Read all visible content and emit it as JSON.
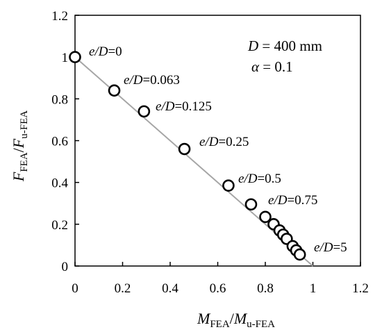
{
  "chart_data": {
    "type": "scatter",
    "xlabel": {
      "main": "M",
      "sub1": "FEA",
      "sep": "/",
      "main2": "M",
      "sub2": "u-FEA"
    },
    "ylabel": {
      "main": "F",
      "sub1": "FEA",
      "sep": "/",
      "main2": "F",
      "sub2": "u-FEA"
    },
    "xlim": [
      0,
      1.2
    ],
    "ylim": [
      0,
      1.2
    ],
    "xticks": [
      "0",
      "0.2",
      "0.4",
      "0.6",
      "0.8",
      "1",
      "1.2"
    ],
    "yticks": [
      "0",
      "0.2",
      "0.4",
      "0.6",
      "0.8",
      "1",
      "1.2"
    ],
    "grid": false,
    "reference_line": {
      "from": [
        0,
        1
      ],
      "to": [
        1,
        0
      ],
      "color": "#a6a6a6"
    },
    "points": [
      {
        "x": 0.0,
        "y": 1.0
      },
      {
        "x": 0.165,
        "y": 0.84
      },
      {
        "x": 0.29,
        "y": 0.74
      },
      {
        "x": 0.46,
        "y": 0.56
      },
      {
        "x": 0.645,
        "y": 0.385
      },
      {
        "x": 0.74,
        "y": 0.295
      },
      {
        "x": 0.8,
        "y": 0.235
      },
      {
        "x": 0.835,
        "y": 0.2
      },
      {
        "x": 0.86,
        "y": 0.17
      },
      {
        "x": 0.875,
        "y": 0.15
      },
      {
        "x": 0.89,
        "y": 0.13
      },
      {
        "x": 0.915,
        "y": 0.095
      },
      {
        "x": 0.93,
        "y": 0.075
      },
      {
        "x": 0.945,
        "y": 0.055
      }
    ],
    "annotations": [
      {
        "var": "e/D",
        "val": "=0"
      },
      {
        "var": "e/D",
        "val": "=0.063"
      },
      {
        "var": "e/D",
        "val": "=0.125"
      },
      {
        "var": "e/D",
        "val": "=0.25"
      },
      {
        "var": "e/D",
        "val": "=0.5"
      },
      {
        "var": "e/D",
        "val": "=0.75"
      },
      {
        "var": "e/D",
        "val": "=5"
      }
    ],
    "parameters": [
      {
        "sym": "D",
        "rest": " = 400 mm"
      },
      {
        "sym": "α",
        "rest": " = 0.1"
      }
    ]
  }
}
